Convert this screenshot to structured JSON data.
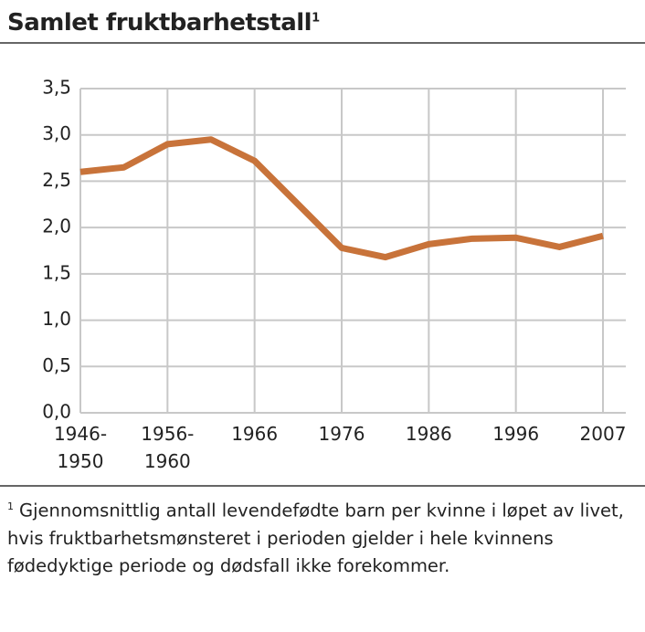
{
  "chart_data": {
    "type": "line",
    "title": "Samlet fruktbarhetstall",
    "title_note": "1",
    "categories": [
      "1946-1950",
      null,
      "1956-1960",
      null,
      "1966",
      null,
      "1976",
      null,
      "1986",
      null,
      "1996",
      null,
      "2007"
    ],
    "series": [
      {
        "name": "Samlet fruktbarhetstall",
        "color": "#c8733a",
        "values": [
          2.6,
          2.65,
          2.9,
          2.95,
          2.72,
          2.25,
          1.78,
          1.68,
          1.82,
          1.88,
          1.89,
          1.79,
          1.91
        ]
      }
    ],
    "ylim": [
      0,
      3.5
    ],
    "yticks": [
      {
        "value": 0,
        "label": "0,0"
      },
      {
        "value": 0.5,
        "label": "0,5"
      },
      {
        "value": 1,
        "label": "1,0"
      },
      {
        "value": 1.5,
        "label": "1,5"
      },
      {
        "value": 2,
        "label": "2,0"
      },
      {
        "value": 2.5,
        "label": "2,5"
      },
      {
        "value": 3,
        "label": "3,0"
      },
      {
        "value": 3.5,
        "label": "3,5"
      }
    ],
    "grid": true,
    "footnote": {
      "marker": "1",
      "text": "Gjennomsnittlig antall levendefødte barn per kvinne i løpet av livet, hvis fruktbarhetsmønsteret i perioden gjelder i hele kvinnens fødedyktige periode og dødsfall ikke forekommer."
    }
  }
}
